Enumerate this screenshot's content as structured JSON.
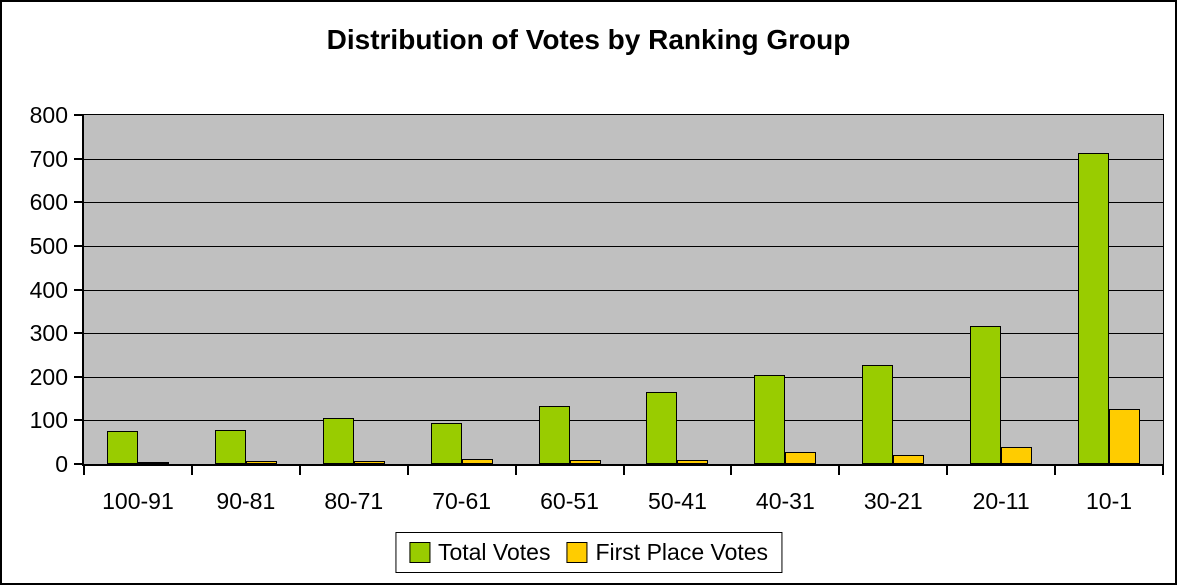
{
  "chart_data": {
    "type": "bar",
    "title": "Distribution of Votes by Ranking Group",
    "categories": [
      "100-91",
      "90-81",
      "80-71",
      "70-61",
      "60-51",
      "50-41",
      "40-31",
      "30-21",
      "20-11",
      "10-1"
    ],
    "series": [
      {
        "name": "Total Votes",
        "color": "#99CC00",
        "values": [
          75,
          77,
          105,
          93,
          132,
          165,
          204,
          228,
          316,
          712
        ]
      },
      {
        "name": "First Place Votes",
        "color": "#FFCC00",
        "values": [
          5,
          8,
          6,
          12,
          10,
          10,
          27,
          21,
          38,
          126
        ]
      }
    ],
    "xlabel": "",
    "ylabel": "",
    "ylim": [
      0,
      800
    ],
    "ytick_step": 100,
    "ytick_labels": [
      "0",
      "100",
      "200",
      "300",
      "400",
      "500",
      "600",
      "700",
      "800"
    ],
    "grid": true,
    "legend_position": "bottom",
    "colors": {
      "plot_background": "#C0C0C0",
      "bar_border": "#000000",
      "chart_border": "#000000",
      "text": "#000000"
    }
  }
}
